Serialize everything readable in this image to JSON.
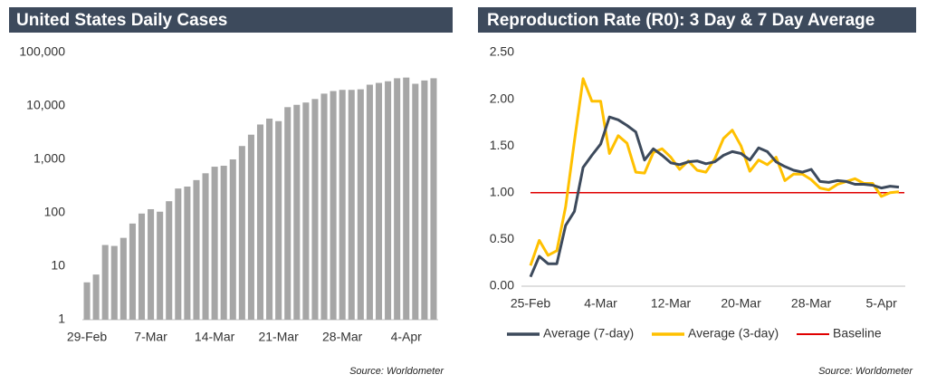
{
  "chart_data": [
    {
      "type": "bar",
      "title": "United States Daily Cases",
      "source": "Source: Worldometer",
      "categories": [
        "29-Feb",
        null,
        null,
        null,
        null,
        null,
        null,
        "7-Mar",
        null,
        null,
        null,
        null,
        null,
        null,
        "14-Mar",
        null,
        null,
        null,
        null,
        null,
        null,
        "21-Mar",
        null,
        null,
        null,
        null,
        null,
        null,
        "28-Mar",
        null,
        null,
        null,
        null,
        null,
        null,
        "4-Apr",
        null,
        null,
        null
      ],
      "values": [
        5,
        7,
        25,
        24,
        34,
        63,
        97,
        117,
        105,
        165,
        285,
        310,
        410,
        550,
        730,
        760,
        1000,
        1780,
        2900,
        4500,
        5800,
        5200,
        9500,
        10500,
        11600,
        13500,
        17000,
        19000,
        20000,
        20000,
        20500,
        25000,
        27000,
        29000,
        33000,
        34000,
        26000,
        30000,
        33000
      ],
      "color": "#a6a6a6",
      "log_scale": true,
      "grid": false,
      "ylim": [
        1,
        100000
      ],
      "yticks": [
        1,
        10,
        100,
        {
          "value": 1000,
          "label": "1,000"
        },
        {
          "value": 10000,
          "label": "10,000"
        },
        {
          "value": 100000,
          "label": "100,000"
        }
      ]
    },
    {
      "type": "line",
      "title": "Reproduction Rate (R0): 3 Day & 7 Day Average",
      "source": "Source: Worldometer",
      "categories": [
        "25-Feb",
        null,
        null,
        null,
        null,
        null,
        null,
        null,
        "4-Mar",
        null,
        null,
        null,
        null,
        null,
        null,
        null,
        "12-Mar",
        null,
        null,
        null,
        null,
        null,
        null,
        null,
        "20-Mar",
        null,
        null,
        null,
        null,
        null,
        null,
        null,
        "28-Mar",
        null,
        null,
        null,
        null,
        null,
        null,
        null,
        "5-Apr",
        null,
        null
      ],
      "series": [
        {
          "name": "Average (7-day)",
          "color": "#3d4a5c",
          "values": [
            0.1,
            0.32,
            0.24,
            0.24,
            0.65,
            0.8,
            1.27,
            1.4,
            1.52,
            1.81,
            1.78,
            1.72,
            1.65,
            1.35,
            1.47,
            1.4,
            1.32,
            1.3,
            1.33,
            1.34,
            1.31,
            1.33,
            1.4,
            1.44,
            1.42,
            1.35,
            1.48,
            1.44,
            1.33,
            1.28,
            1.24,
            1.22,
            1.25,
            1.12,
            1.11,
            1.13,
            1.12,
            1.09,
            1.09,
            1.08,
            1.05,
            1.07,
            1.06
          ]
        },
        {
          "name": "Average (3-day)",
          "color": "#ffc000",
          "values": [
            0.22,
            0.49,
            0.33,
            0.38,
            0.85,
            1.55,
            2.22,
            1.98,
            1.98,
            1.42,
            1.61,
            1.53,
            1.22,
            1.21,
            1.43,
            1.47,
            1.38,
            1.25,
            1.34,
            1.24,
            1.22,
            1.36,
            1.58,
            1.67,
            1.5,
            1.23,
            1.35,
            1.3,
            1.38,
            1.13,
            1.2,
            1.2,
            1.14,
            1.05,
            1.03,
            1.09,
            1.12,
            1.15,
            1.1,
            1.1,
            0.96,
            1.0,
            1.01
          ]
        }
      ],
      "reference_line": {
        "name": "Baseline",
        "value": 1,
        "color": "#e00000"
      },
      "grid": false,
      "legend": "bottom",
      "ylim": [
        0,
        2.5
      ],
      "yticks": [
        {
          "value": 0,
          "label": "0.00"
        },
        {
          "value": 0.5,
          "label": "0.50"
        },
        {
          "value": 1,
          "label": "1.00"
        },
        {
          "value": 1.5,
          "label": "1.50"
        },
        {
          "value": 2,
          "label": "2.00"
        },
        {
          "value": 2.5,
          "label": "2.50"
        }
      ]
    }
  ]
}
